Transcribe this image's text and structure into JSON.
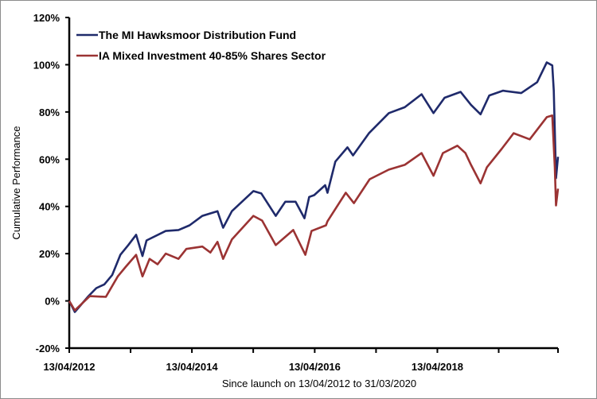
{
  "chart_data": {
    "type": "line",
    "title": "",
    "xlabel": "Since launch on 13/04/2012 to 31/03/2020",
    "ylabel": "Cumulative Performance",
    "xlim": [
      "2012-04-13",
      "2020-03-31"
    ],
    "ylim": [
      -20,
      120
    ],
    "yticks": [
      -20,
      0,
      20,
      40,
      60,
      80,
      100,
      120
    ],
    "ytick_labels": [
      "-20%",
      "0%",
      "20%",
      "40%",
      "60%",
      "80%",
      "100%",
      "120%"
    ],
    "xticks": [
      "2012-04-13",
      "2014-04-13",
      "2016-04-13",
      "2018-04-13"
    ],
    "xtick_labels": [
      "13/04/2012",
      "13/04/2014",
      "13/04/2016",
      "13/04/2018"
    ],
    "x_minor_ticks": [
      "2013-04-13",
      "2015-04-13",
      "2017-04-13",
      "2019-04-13"
    ],
    "grid": false,
    "legend_position": "top-left",
    "series": [
      {
        "name": "The MI Hawksmoor Distribution Fund",
        "color": "#1f2a6b",
        "x": [
          "2012-04-13",
          "2012-05-16",
          "2012-06-18",
          "2012-08-05",
          "2012-09-21",
          "2012-11-08",
          "2012-12-25",
          "2013-02-11",
          "2013-03-30",
          "2013-05-16",
          "2013-06-23",
          "2013-07-17",
          "2013-11-08",
          "2014-01-23",
          "2014-03-30",
          "2014-06-14",
          "2014-09-12",
          "2014-10-16",
          "2014-12-07",
          "2015-04-14",
          "2015-05-31",
          "2015-08-25",
          "2015-10-21",
          "2015-12-21",
          "2016-02-12",
          "2016-03-11",
          "2016-04-10",
          "2016-06-14",
          "2016-06-28",
          "2016-08-14",
          "2016-10-25",
          "2016-11-27",
          "2017-03-02",
          "2017-06-28",
          "2017-10-01",
          "2018-01-09",
          "2018-03-21",
          "2018-05-26",
          "2018-08-29",
          "2018-10-30",
          "2018-12-26",
          "2019-02-16",
          "2019-05-08",
          "2019-08-25",
          "2019-11-28",
          "2020-01-24",
          "2020-02-26",
          "2020-03-06",
          "2020-03-19",
          "2020-03-31"
        ],
        "values": [
          0,
          -4.7,
          -2,
          2,
          5.4,
          7,
          11,
          19.5,
          23.6,
          28,
          19,
          25.6,
          29.6,
          30,
          32,
          36,
          38,
          31,
          38,
          46.5,
          45.5,
          36,
          42,
          42,
          35,
          44,
          44.8,
          49,
          45.8,
          59,
          65,
          61.6,
          71,
          79.5,
          82,
          87.5,
          79.5,
          86,
          88.5,
          83,
          79,
          87,
          89,
          88,
          92.6,
          101,
          99.7,
          89,
          52,
          61
        ]
      },
      {
        "name": "IA Mixed Investment 40-85% Shares Sector",
        "color": "#9b3333",
        "x": [
          "2012-04-13",
          "2012-05-16",
          "2012-08-13",
          "2012-11-17",
          "2013-01-27",
          "2013-03-16",
          "2013-05-16",
          "2013-06-23",
          "2013-08-04",
          "2013-09-21",
          "2013-11-08",
          "2014-01-23",
          "2014-03-11",
          "2014-06-14",
          "2014-08-01",
          "2014-09-12",
          "2014-10-16",
          "2014-12-07",
          "2015-04-14",
          "2015-06-05",
          "2015-08-25",
          "2015-12-07",
          "2016-02-17",
          "2016-03-25",
          "2016-06-19",
          "2016-06-28",
          "2016-10-15",
          "2016-12-02",
          "2017-03-06",
          "2017-06-28",
          "2017-10-01",
          "2018-01-09",
          "2018-03-21",
          "2018-05-16",
          "2018-08-10",
          "2018-09-27",
          "2018-10-30",
          "2018-12-26",
          "2019-02-02",
          "2019-04-30",
          "2019-07-11",
          "2019-10-15",
          "2020-01-24",
          "2020-02-26",
          "2020-03-12",
          "2020-03-19",
          "2020-03-31"
        ],
        "values": [
          0,
          -4,
          2,
          1.7,
          10.4,
          14.5,
          19.5,
          10.4,
          17.8,
          15.5,
          20,
          17.8,
          22,
          23,
          20.5,
          25,
          17.8,
          26,
          36,
          34,
          23.6,
          30,
          19.5,
          29.6,
          32,
          33.7,
          45.8,
          41.4,
          51.5,
          55.6,
          57.6,
          62.6,
          53,
          62.6,
          65.7,
          62.6,
          57.6,
          49.8,
          56.6,
          64.3,
          71,
          68.4,
          77.8,
          78.5,
          56.6,
          40.4,
          47.5
        ]
      }
    ]
  }
}
